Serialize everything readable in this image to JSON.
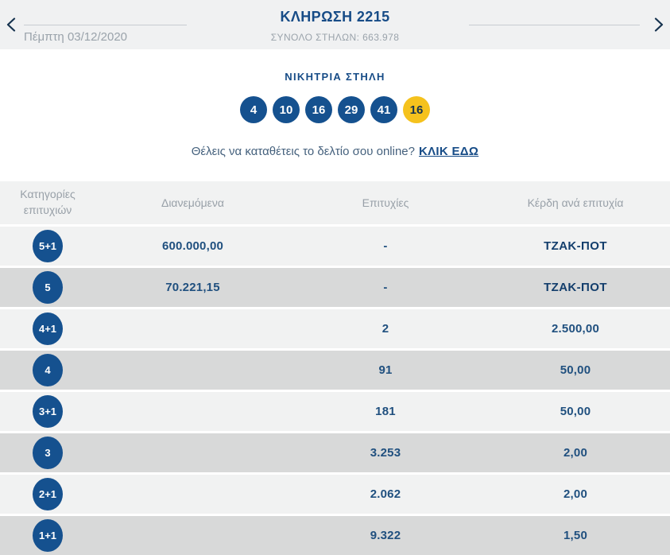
{
  "header": {
    "title": "ΚΛΗΡΩΣΗ 2215",
    "subtitle": "ΣΥΝΟΛΟ ΣΤΗΛΩΝ: 663.978",
    "date": "Πέμπτη 03/12/2020",
    "icons": {
      "prev": "chevron-left",
      "next": "chevron-right"
    }
  },
  "winning": {
    "heading": "ΝΙΚΗΤΡΙΑ ΣΤΗΛΗ",
    "numbers": [
      "4",
      "10",
      "16",
      "29",
      "41"
    ],
    "joker": "16"
  },
  "promo": {
    "text": "Θέλεις να καταθέτεις το δελτίο σου online?",
    "link_label": "ΚΛΙΚ ΕΔΩ"
  },
  "table": {
    "columns": [
      "Κατηγορίες επιτυχιών",
      "Διανεμόμενα",
      "Επιτυχίες",
      "Κέρδη ανά επιτυχία"
    ],
    "rows": [
      {
        "category": "5+1",
        "distributed": "600.000,00",
        "winners": "-",
        "prize": "ΤΖΑΚ-ΠΟΤ",
        "jackpot": true
      },
      {
        "category": "5",
        "distributed": "70.221,15",
        "winners": "-",
        "prize": "ΤΖΑΚ-ΠΟΤ",
        "jackpot": true
      },
      {
        "category": "4+1",
        "distributed": "",
        "winners": "2",
        "prize": "2.500,00",
        "jackpot": false
      },
      {
        "category": "4",
        "distributed": "",
        "winners": "91",
        "prize": "50,00",
        "jackpot": false
      },
      {
        "category": "3+1",
        "distributed": "",
        "winners": "181",
        "prize": "50,00",
        "jackpot": false
      },
      {
        "category": "3",
        "distributed": "",
        "winners": "3.253",
        "prize": "2,00",
        "jackpot": false
      },
      {
        "category": "2+1",
        "distributed": "",
        "winners": "2.062",
        "prize": "2,00",
        "jackpot": false
      },
      {
        "category": "1+1",
        "distributed": "",
        "winners": "9.322",
        "prize": "1,50",
        "jackpot": false
      }
    ]
  },
  "colors": {
    "header_bg": "#f0f1f2",
    "rule": "#c8ccd1",
    "navy": "#174c87",
    "navy_dark": "#16334f",
    "gray_text": "#9aa3ab",
    "col_gray": "#98a0a8",
    "ball_blue": "#15518f",
    "ball_yellow": "#f5c21d",
    "value_navy": "#20507f",
    "jackpot_navy": "#133e6c",
    "promo_text": "#45617d",
    "row_light": "#f1f2f2",
    "row_dark": "#d8d9d9"
  }
}
